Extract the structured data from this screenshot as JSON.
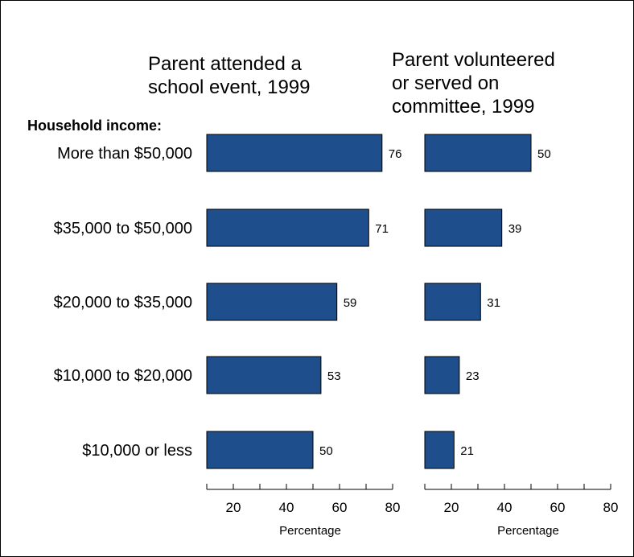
{
  "chart_data": [
    {
      "type": "bar",
      "orientation": "horizontal",
      "title": "Parent attended a school event, 1999",
      "title_lines": [
        "Parent attended a",
        "school event, 1999"
      ],
      "category_label": "Household income:",
      "categories": [
        "More than $50,000",
        "$35,000 to $50,000",
        "$20,000 to $35,000",
        "$10,000 to $20,000",
        "$10,000 or less"
      ],
      "values": [
        76,
        71,
        59,
        53,
        50
      ],
      "xlabel": "Percentage",
      "xlim": [
        10,
        80
      ],
      "xticks": [
        20,
        40,
        60,
        80
      ],
      "grid": false,
      "bar_color": "#1e4e8c"
    },
    {
      "type": "bar",
      "orientation": "horizontal",
      "title": "Parent volunteered or served on committee, 1999",
      "title_lines": [
        "Parent volunteered",
        "or served on",
        "committee, 1999"
      ],
      "categories": [
        "More than $50,000",
        "$35,000 to $50,000",
        "$20,000 to $35,000",
        "$10,000 to $20,000",
        "$10,000 or less"
      ],
      "values": [
        50,
        39,
        31,
        23,
        21
      ],
      "xlabel": "Percentage",
      "xlim": [
        10,
        80
      ],
      "xticks": [
        20,
        40,
        60,
        80
      ],
      "grid": false,
      "bar_color": "#1e4e8c"
    }
  ]
}
